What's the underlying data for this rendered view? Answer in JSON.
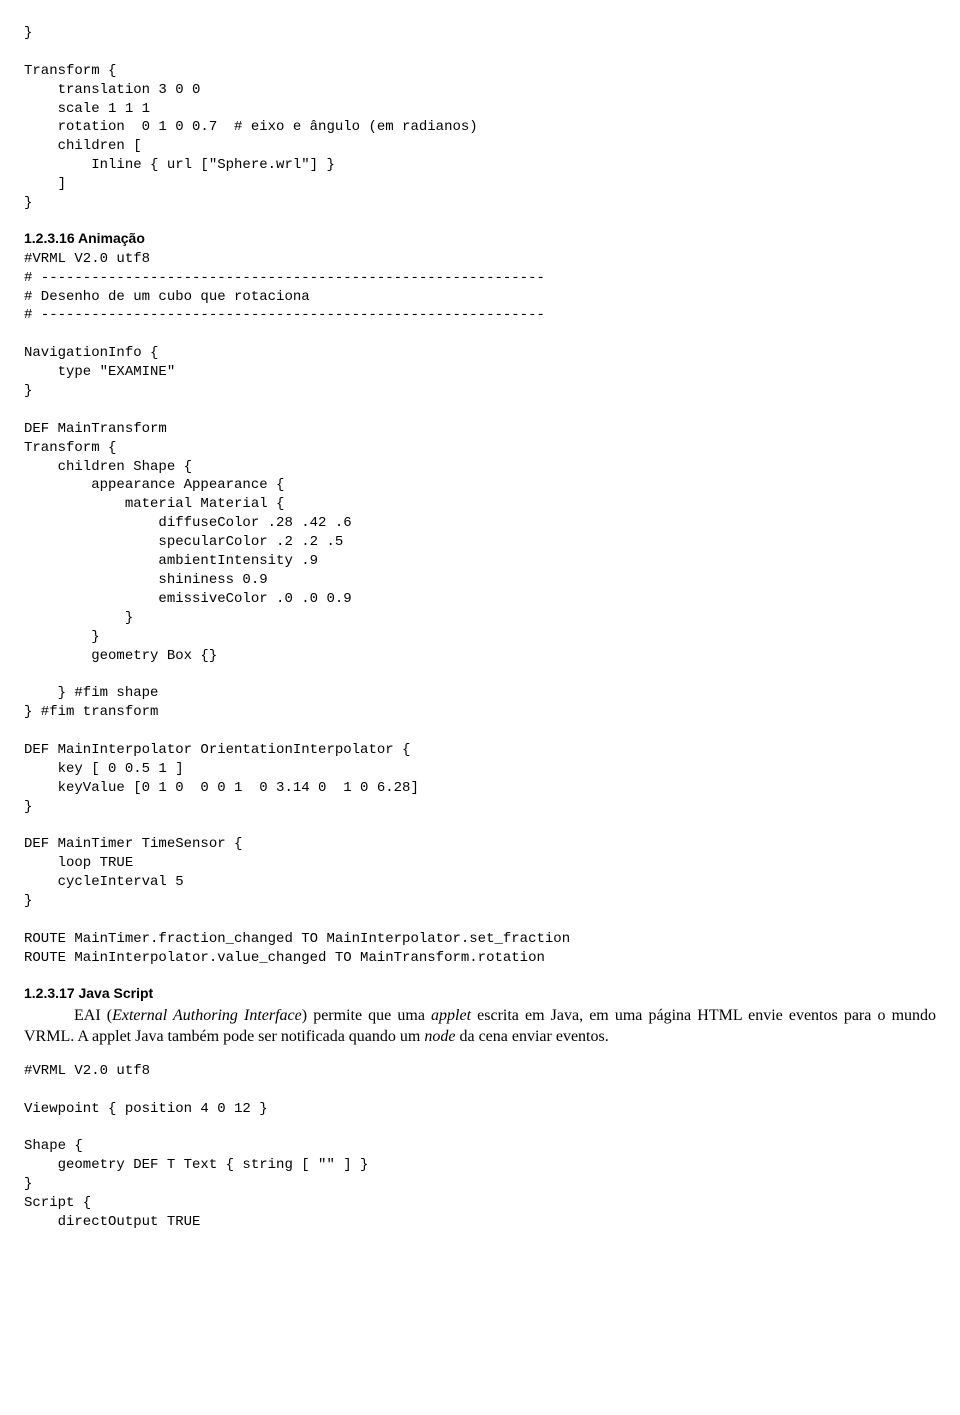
{
  "code1": "}\n\nTransform {\n    translation 3 0 0\n    scale 1 1 1\n    rotation  0 1 0 0.7  # eixo e ângulo (em radianos)\n    children [\n        Inline { url [\"Sphere.wrl\"] }\n    ]\n}",
  "hdr1": "1.2.3.16  Animação",
  "code2": "#VRML V2.0 utf8\n# ------------------------------------------------------------\n# Desenho de um cubo que rotaciona\n# ------------------------------------------------------------\n\nNavigationInfo {\n    type \"EXAMINE\"\n}\n\nDEF MainTransform\nTransform {\n    children Shape {\n        appearance Appearance {\n            material Material {\n                diffuseColor .28 .42 .6\n                specularColor .2 .2 .5\n                ambientIntensity .9\n                shininess 0.9\n                emissiveColor .0 .0 0.9\n            }\n        }\n        geometry Box {}\n\n    } #fim shape\n} #fim transform\n\nDEF MainInterpolator OrientationInterpolator {\n    key [ 0 0.5 1 ]\n    keyValue [0 1 0  0 0 1  0 3.14 0  1 0 6.28]\n}\n\nDEF MainTimer TimeSensor {\n    loop TRUE\n    cycleInterval 5\n}\n\nROUTE MainTimer.fraction_changed TO MainInterpolator.set_fraction\nROUTE MainInterpolator.value_changed TO MainTransform.rotation",
  "hdr2": "1.2.3.17  Java Script",
  "para": {
    "pre": "EAI (",
    "i1": "External Authoring Interface",
    "mid1": ") permite que uma ",
    "i2": "applet",
    "mid2": " escrita em Java, em uma página HTML envie eventos para o mundo VRML. A applet Java também pode ser notificada quando um ",
    "i3": "node",
    "mid3": " da cena enviar eventos."
  },
  "code3": "#VRML V2.0 utf8\n\nViewpoint { position 4 0 12 }\n\nShape {\n    geometry DEF T Text { string [ \"\" ] }\n}\nScript {\n    directOutput TRUE"
}
